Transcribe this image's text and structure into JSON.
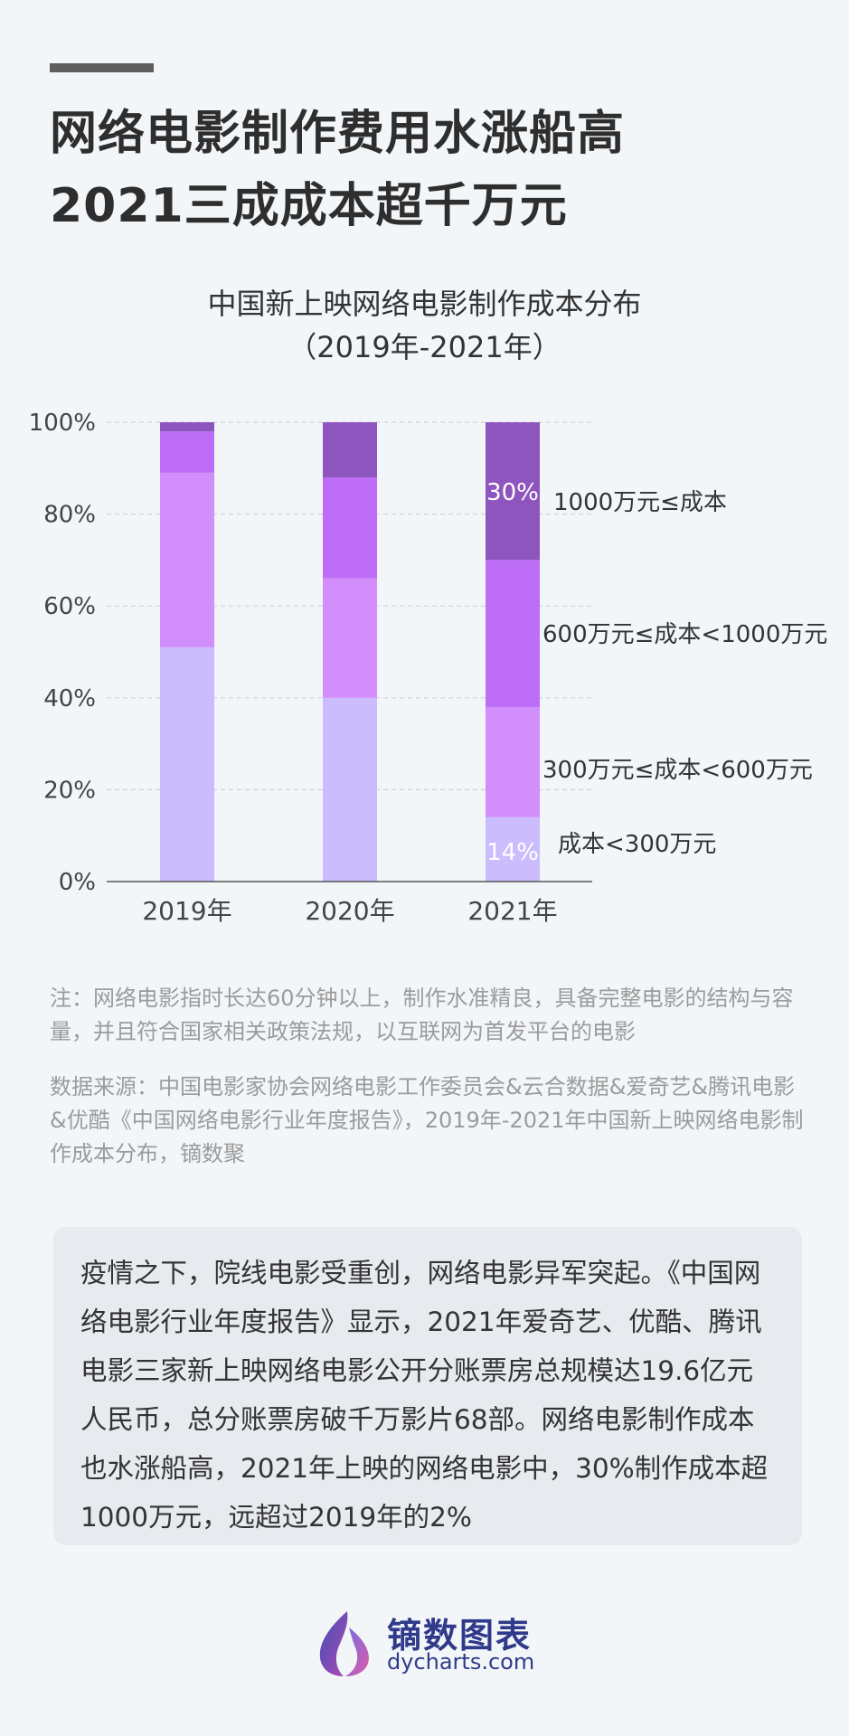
{
  "headline": {
    "line1": "网络电影制作费用水涨船高",
    "line2": "2021三成成本超千万元"
  },
  "chart_data": {
    "type": "bar",
    "stacked": true,
    "title": "中国新上映网络电影制作成本分布",
    "subtitle": "（2019年-2021年）",
    "categories": [
      "2019年",
      "2020年",
      "2021年"
    ],
    "ylim": [
      0,
      100
    ],
    "yticks": [
      "0%",
      "20%",
      "40%",
      "60%",
      "80%",
      "100%"
    ],
    "grid": true,
    "legend_placement": "right",
    "series": [
      {
        "name": "成本<300万元",
        "values": [
          51,
          40,
          14
        ],
        "color": "#cbbdfd"
      },
      {
        "name": "300万元≤成本<600万元",
        "values": [
          38,
          26,
          24
        ],
        "color": "#d28ffb"
      },
      {
        "name": "600万元≤成本<1000万元",
        "values": [
          9,
          22,
          32
        ],
        "color": "#be6ef6"
      },
      {
        "name": "1000万元≤成本",
        "values": [
          2,
          12,
          30
        ],
        "color": "#8f55bf"
      }
    ],
    "data_labels": [
      {
        "text": "30%"
      },
      {
        "text": "14%"
      }
    ]
  },
  "note": {
    "text": "注：网络电影指时长达60分钟以上，制作水准精良，具备完整电影的结构与容量，并且符合国家相关政策法规，以互联网为首发平台的电影",
    "source": "数据来源：中国电影家协会网络电影工作委员会&云合数据&爱奇艺&腾讯电影&优酷《中国网络电影行业年度报告》，2019年-2021年中国新上映网络电影制作成本分布，镝数聚"
  },
  "summary": "疫情之下，院线电影受重创，网络电影异军突起。《中国网络电影行业年度报告》显示，2021年爱奇艺、优酷、腾讯电影三家新上映网络电影公开分账票房总规模达19.6亿元人民币，总分账票房破千万影片68部。网络电影制作成本也水涨船高，2021年上映的网络电影中，30%制作成本超1000万元，远超过2019年的2%",
  "brand": {
    "name": "镝数图表",
    "url": "dycharts.com",
    "logo_icon": "flame-logo-icon"
  },
  "colors": {
    "axis": "#555555",
    "grid": "#d0d3d8",
    "brand": "#2f3a8a"
  }
}
